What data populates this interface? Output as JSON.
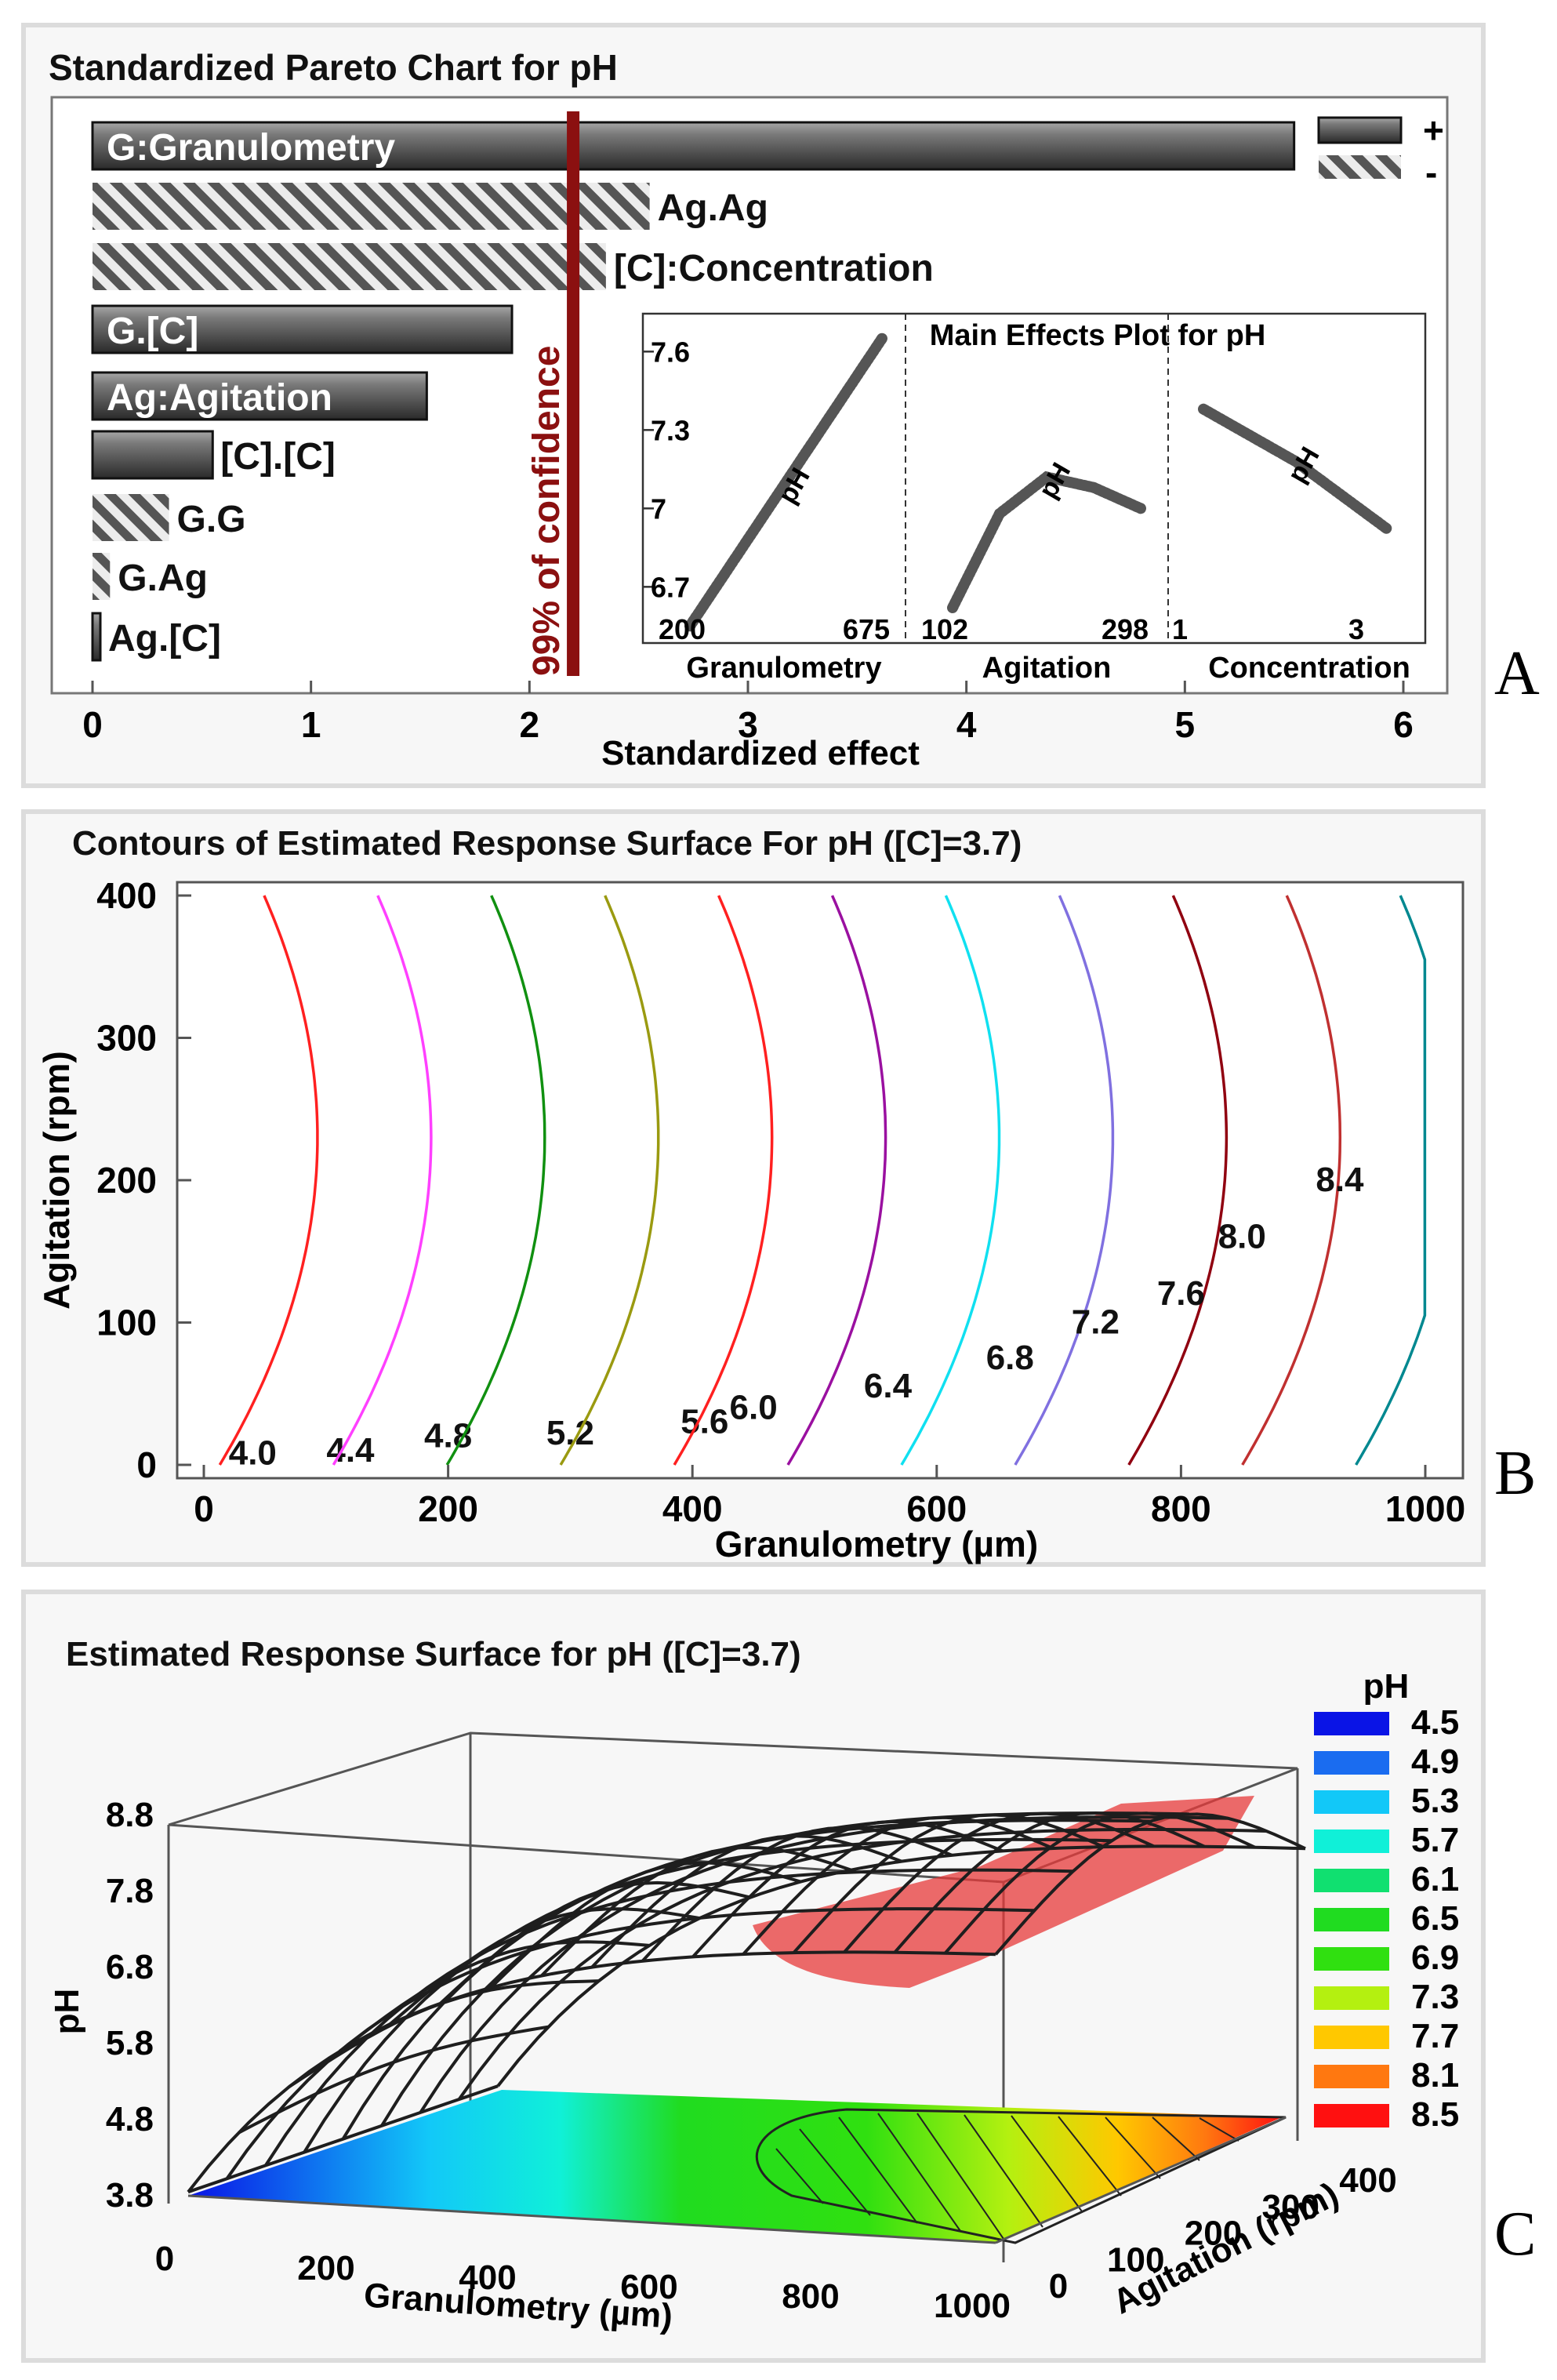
{
  "panels": {
    "a": "A",
    "b": "B",
    "c": "C"
  },
  "chart_data": [
    {
      "type": "bar",
      "orientation": "horizontal",
      "title": "Standardized Pareto Chart for pH",
      "xlabel": "Standardized effect",
      "xlim": [
        0,
        6
      ],
      "xticks": [
        "0",
        "1",
        "2",
        "3",
        "4",
        "5",
        "6"
      ],
      "confidence_line": {
        "value": 2.2,
        "label": "99% of confidence"
      },
      "legend": {
        "positive": "+",
        "negative": "-",
        "placement": "top-right"
      },
      "bars": [
        {
          "label": "G:Granulometry",
          "value": 5.5,
          "sign": "+"
        },
        {
          "label": "Ag.Ag",
          "value": 2.55,
          "sign": "-"
        },
        {
          "label": "[C]:Concentration",
          "value": 2.35,
          "sign": "-"
        },
        {
          "label": "G.[C]",
          "value": 1.92,
          "sign": "+"
        },
        {
          "label": "Ag:Agitation",
          "value": 1.53,
          "sign": "+"
        },
        {
          "label": "[C].[C]",
          "value": 0.55,
          "sign": "+"
        },
        {
          "label": "G.G",
          "value": 0.35,
          "sign": "-"
        },
        {
          "label": "G.Ag",
          "value": 0.08,
          "sign": "-"
        },
        {
          "label": "Ag.[C]",
          "value": 0.03,
          "sign": "+"
        }
      ],
      "colors": {
        "bar": "#6a6a6a",
        "confidence": "#8b1010"
      }
    },
    {
      "type": "line",
      "title": "Main Effects Plot for pH",
      "ylim": [
        6.5,
        7.7
      ],
      "yticks": [
        "7.6",
        "7.3",
        "7",
        "6.7"
      ],
      "series_label": "pH",
      "factors": [
        {
          "name": "Granulometry",
          "low": "200",
          "high": "675",
          "x": [
            0,
            0.5,
            1
          ],
          "y": [
            6.55,
            7.1,
            7.65
          ]
        },
        {
          "name": "Agitation",
          "low": "102",
          "high": "298",
          "x": [
            0,
            0.25,
            0.5,
            0.75,
            1
          ],
          "y": [
            6.62,
            6.98,
            7.12,
            7.08,
            7.0
          ]
        },
        {
          "name": "Concentration",
          "low": "1",
          "high": "3",
          "x": [
            0,
            0.5,
            1
          ],
          "y": [
            7.38,
            7.18,
            6.92
          ]
        }
      ]
    },
    {
      "type": "contour",
      "title": "Contours of Estimated Response Surface For pH ([C]=3.7)",
      "xlabel": "Granulometry (µm)",
      "ylabel": "Agitation (rpm)",
      "xlim": [
        0,
        1000
      ],
      "ylim": [
        0,
        400
      ],
      "xticks": [
        "0",
        "200",
        "400",
        "600",
        "800",
        "1000"
      ],
      "yticks": [
        "0",
        "100",
        "200",
        "300",
        "400"
      ],
      "contours": [
        {
          "level": 4.0,
          "label": "4.0",
          "color": "#1f1fd6"
        },
        {
          "level": 4.4,
          "label": "4.4",
          "color": "#ff2020"
        },
        {
          "level": 4.8,
          "label": "4.8",
          "color": "#ff40ff"
        },
        {
          "level": 5.2,
          "label": "5.2",
          "color": "#109010"
        },
        {
          "level": 5.6,
          "label": "5.6",
          "color": "#9a9a10"
        },
        {
          "level": 6.0,
          "label": "6.0",
          "color": "#ff2020"
        },
        {
          "level": 6.4,
          "label": "6.4",
          "color": "#9a10a0"
        },
        {
          "level": 6.8,
          "label": "6.8",
          "color": "#10e0f0"
        },
        {
          "level": 7.2,
          "label": "7.2",
          "color": "#8070e0"
        },
        {
          "level": 7.6,
          "label": "7.6",
          "color": "#900010"
        },
        {
          "level": 8.0,
          "label": "8.0",
          "color": "#c03030"
        },
        {
          "level": 8.4,
          "label": "8.4",
          "color": "#008890"
        }
      ]
    },
    {
      "type": "surface3d",
      "title": "Estimated Response Surface for pH ([C]=3.7)",
      "xlabel": "Granulometry (µm)",
      "ylabel": "Agitation (rpm)",
      "zlabel": "pH",
      "xticks": [
        "0",
        "200",
        "400",
        "600",
        "800",
        "1000"
      ],
      "yticks": [
        "0",
        "100",
        "200",
        "300",
        "400"
      ],
      "zticks": [
        "8.8",
        "7.8",
        "6.8",
        "5.8",
        "4.8",
        "3.8"
      ],
      "legend": {
        "title": "pH",
        "placement": "right",
        "entries": [
          {
            "label": "4.5",
            "color": "#0a14e6"
          },
          {
            "label": "4.9",
            "color": "#1a6cf0"
          },
          {
            "label": "5.3",
            "color": "#12c8f8"
          },
          {
            "label": "5.7",
            "color": "#10f0d8"
          },
          {
            "label": "6.1",
            "color": "#10e070"
          },
          {
            "label": "6.5",
            "color": "#20dc20"
          },
          {
            "label": "6.9",
            "color": "#30e010"
          },
          {
            "label": "7.3",
            "color": "#b4f010"
          },
          {
            "label": "7.7",
            "color": "#ffc800"
          },
          {
            "label": "8.1",
            "color": "#ff7810"
          },
          {
            "label": "8.5",
            "color": "#ff1010"
          }
        ]
      }
    }
  ]
}
